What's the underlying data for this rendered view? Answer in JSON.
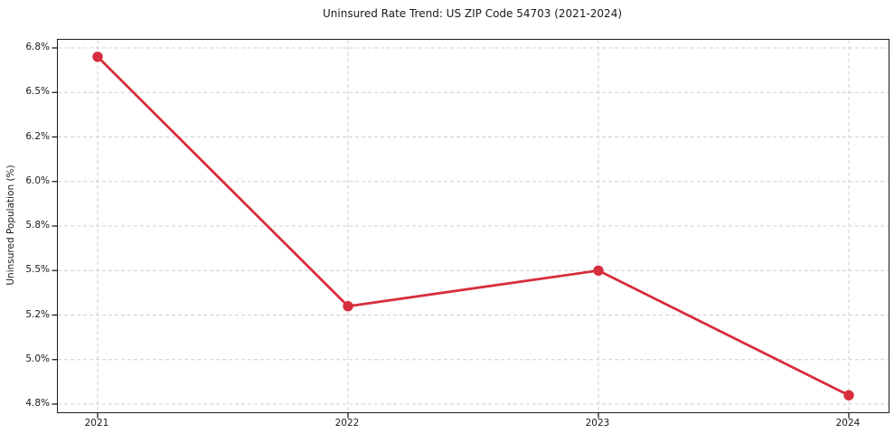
{
  "figure": {
    "background": "#ffffff"
  },
  "chart_data": {
    "type": "line",
    "title": "Uninsured Rate Trend: US ZIP Code 54703 (2021-2024)",
    "xlabel": "",
    "ylabel": "Uninsured Population (%)",
    "categories": [
      "2021",
      "2022",
      "2023",
      "2024"
    ],
    "series": [
      {
        "name": "Uninsured rate",
        "values": [
          6.7,
          5.3,
          5.5,
          4.8
        ],
        "color": "#d62e3c",
        "marker": "circle"
      }
    ],
    "ylim": [
      4.75,
      6.75
    ],
    "yticks": [
      {
        "value": 6.75,
        "label": "6.8%"
      },
      {
        "value": 6.5,
        "label": "6.5%"
      },
      {
        "value": 6.25,
        "label": "6.2%"
      },
      {
        "value": 6.0,
        "label": "6.0%"
      },
      {
        "value": 5.75,
        "label": "5.8%"
      },
      {
        "value": 5.5,
        "label": "5.5%"
      },
      {
        "value": 5.25,
        "label": "5.2%"
      },
      {
        "value": 5.0,
        "label": "5.0%"
      },
      {
        "value": 4.75,
        "label": "4.8%"
      }
    ],
    "grid": true,
    "grid_color": "#cfcfcf",
    "grid_style": "dashed",
    "legend": "none",
    "spine_color": "#1c1c1c",
    "text_color": "#1a1a1a"
  }
}
